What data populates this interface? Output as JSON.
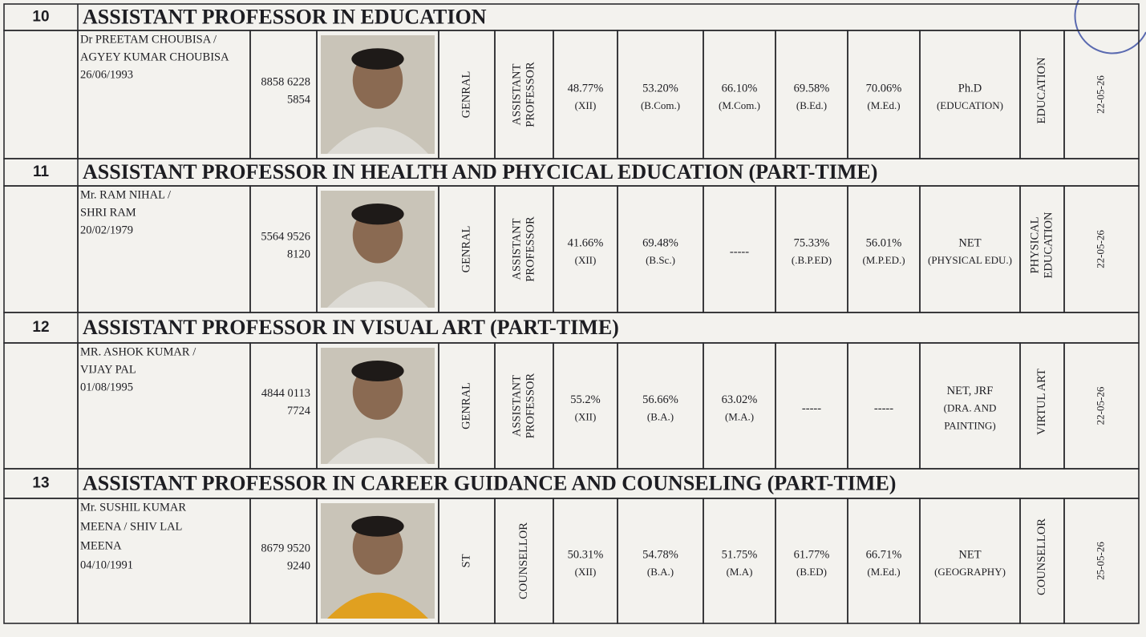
{
  "sections": [
    {
      "number": "10",
      "title": "ASSISTANT PROFESSOR IN EDUCATION",
      "name_lines": [
        "Dr PREETAM CHOUBISA /",
        "AGYEY KUMAR CHOUBISA",
        "26/06/1993"
      ],
      "phone_lines": [
        "8858 6228",
        "5854"
      ],
      "category": "GENRAL",
      "post_lines": [
        "ASSISTANT",
        "PROFESSOR"
      ],
      "qualifications": [
        [
          "48.77%",
          "(XII)"
        ],
        [
          "53.20%",
          "(B.Com.)"
        ],
        [
          "66.10%",
          "(M.Com.)"
        ],
        [
          "69.58%",
          "(B.Ed.)"
        ],
        [
          "70.06%",
          "(M.Ed.)"
        ],
        [
          "Ph.D",
          "(EDUCATION)"
        ]
      ],
      "subject_lines": [
        "EDUCATION"
      ],
      "date": "22-05-26"
    },
    {
      "number": "11",
      "title": "ASSISTANT PROFESSOR IN HEALTH AND PHYCICAL EDUCATION (PART-TIME)",
      "name_lines": [
        "Mr. RAM NIHAL /",
        "SHRI RAM",
        "20/02/1979"
      ],
      "phone_lines": [
        "5564 9526",
        "8120"
      ],
      "category": "GENRAL",
      "post_lines": [
        "ASSISTANT",
        "PROFESSOR"
      ],
      "qualifications": [
        [
          "41.66%",
          "(XII)"
        ],
        [
          "69.48%",
          "(B.Sc.)"
        ],
        [
          "-----"
        ],
        [
          "75.33%",
          "(.B.P.ED)"
        ],
        [
          "56.01%",
          "(M.P.ED.)"
        ],
        [
          "NET",
          "(PHYSICAL EDU.)"
        ]
      ],
      "subject_lines": [
        "PHYSICAL",
        "EDUCATION"
      ],
      "date": "22-05-26"
    },
    {
      "number": "12",
      "title": "ASSISTANT PROFESSOR IN VISUAL ART (PART-TIME)",
      "name_lines": [
        "MR. ASHOK KUMAR /",
        "VIJAY PAL",
        "01/08/1995"
      ],
      "phone_lines": [
        "4844 0113",
        "7724"
      ],
      "category": "GENRAL",
      "post_lines": [
        "ASSISTANT",
        "PROFESSOR"
      ],
      "qualifications": [
        [
          "55.2%",
          "(XII)"
        ],
        [
          "56.66%",
          "(B.A.)"
        ],
        [
          "63.02%",
          "(M.A.)"
        ],
        [
          "-----"
        ],
        [
          "-----"
        ],
        [
          "NET, JRF",
          "(DRA. AND",
          "PAINTING)"
        ]
      ],
      "subject_lines": [
        "VIRTUL ART"
      ],
      "date": "22-05-26"
    },
    {
      "number": "13",
      "title": "ASSISTANT PROFESSOR IN CAREER GUIDANCE AND COUNSELING (PART-TIME)",
      "name_lines": [
        "Mr. SUSHIL KUMAR",
        "MEENA /  SHIV LAL",
        "MEENA",
        "04/10/1991"
      ],
      "phone_lines": [
        "8679 9520",
        "9240"
      ],
      "category": "ST",
      "post_lines": [
        "COUNSELLOR"
      ],
      "qualifications": [
        [
          "50.31%",
          "(XII)"
        ],
        [
          "54.78%",
          "(B.A.)"
        ],
        [
          "51.75%",
          "(M.A)"
        ],
        [
          "61.77%",
          "(B.ED)"
        ],
        [
          "66.71%",
          "(M.Ed.)"
        ],
        [
          "NET",
          "(GEOGRAPHY)"
        ]
      ],
      "subject_lines": [
        "COUNSELLOR"
      ],
      "date": "25-05-26"
    }
  ]
}
